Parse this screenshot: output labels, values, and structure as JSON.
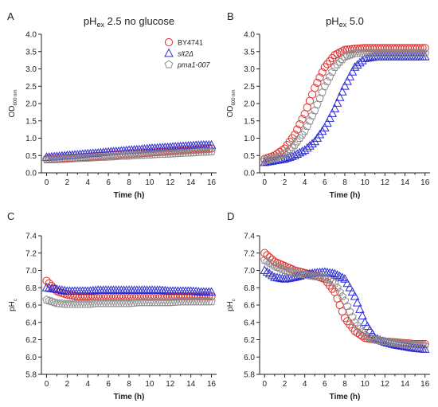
{
  "colors": {
    "axis": "#222222",
    "background": "#ffffff"
  },
  "chart_data": [
    {
      "panel_letter": "A",
      "type": "scatter",
      "title_main": "pH",
      "title_sub": "ex",
      "title_tail": " 2.5 no glucose",
      "xlabel": "Time (h)",
      "ylabel_main": "OD",
      "ylabel_sub": "600 nm",
      "xlim": [
        -0.5,
        16.5
      ],
      "ylim": [
        0.0,
        4.0
      ],
      "xticks": [
        0,
        2,
        4,
        6,
        8,
        10,
        12,
        14,
        16
      ],
      "yticks": [
        0.0,
        0.5,
        1.0,
        1.5,
        2.0,
        2.5,
        3.0,
        3.5,
        4.0
      ],
      "ytick_decimals": 1,
      "legend": {
        "position": "top-right",
        "entries": [
          {
            "name": "BY4741",
            "italic": false,
            "marker": "circle",
            "color": "#e0302e"
          },
          {
            "name": "slt2Δ",
            "italic": true,
            "marker": "triangle",
            "color": "#2b2bd4"
          },
          {
            "name": "pma1-007",
            "italic": true,
            "marker": "pentagon",
            "color": "#8c8c8c"
          }
        ]
      },
      "series": [
        {
          "marker": "circle",
          "color": "#e0302e",
          "x": [
            0,
            1,
            2,
            3,
            4,
            5,
            6,
            7,
            8,
            9,
            10,
            11,
            12,
            13,
            14,
            15,
            16
          ],
          "values": [
            0.4,
            0.41,
            0.43,
            0.44,
            0.46,
            0.48,
            0.5,
            0.52,
            0.54,
            0.56,
            0.58,
            0.6,
            0.62,
            0.64,
            0.66,
            0.68,
            0.7
          ]
        },
        {
          "marker": "triangle",
          "color": "#2b2bd4",
          "x": [
            0,
            1,
            2,
            3,
            4,
            5,
            6,
            7,
            8,
            9,
            10,
            11,
            12,
            13,
            14,
            15,
            16
          ],
          "values": [
            0.45,
            0.47,
            0.5,
            0.52,
            0.55,
            0.57,
            0.6,
            0.62,
            0.65,
            0.67,
            0.7,
            0.72,
            0.74,
            0.76,
            0.78,
            0.8,
            0.8
          ]
        },
        {
          "marker": "pentagon",
          "color": "#8c8c8c",
          "x": [
            0,
            1,
            2,
            3,
            4,
            5,
            6,
            7,
            8,
            9,
            10,
            11,
            12,
            13,
            14,
            15,
            16
          ],
          "values": [
            0.38,
            0.39,
            0.4,
            0.42,
            0.43,
            0.45,
            0.46,
            0.48,
            0.49,
            0.51,
            0.52,
            0.54,
            0.55,
            0.57,
            0.58,
            0.6,
            0.61
          ]
        }
      ]
    },
    {
      "panel_letter": "B",
      "type": "scatter",
      "title_main": "pH",
      "title_sub": "ex",
      "title_tail": " 5.0",
      "xlabel": "Time (h)",
      "ylabel_main": "OD",
      "ylabel_sub": "600 nm",
      "xlim": [
        -0.5,
        16.5
      ],
      "ylim": [
        0.0,
        4.0
      ],
      "xticks": [
        0,
        2,
        4,
        6,
        8,
        10,
        12,
        14,
        16
      ],
      "yticks": [
        0.0,
        0.5,
        1.0,
        1.5,
        2.0,
        2.5,
        3.0,
        3.5,
        4.0
      ],
      "ytick_decimals": 1,
      "series": [
        {
          "marker": "circle",
          "color": "#e0302e",
          "x": [
            0,
            1,
            2,
            3,
            4,
            5,
            6,
            7,
            8,
            9,
            10,
            11,
            12,
            13,
            14,
            15,
            16
          ],
          "values": [
            0.4,
            0.5,
            0.7,
            1.1,
            1.7,
            2.45,
            3.05,
            3.4,
            3.55,
            3.58,
            3.6,
            3.6,
            3.6,
            3.6,
            3.6,
            3.6,
            3.6
          ]
        },
        {
          "marker": "triangle",
          "color": "#2b2bd4",
          "x": [
            0,
            1,
            2,
            3,
            4,
            5,
            6,
            7,
            8,
            9,
            10,
            11,
            12,
            13,
            14,
            15,
            16
          ],
          "values": [
            0.3,
            0.35,
            0.4,
            0.5,
            0.65,
            0.9,
            1.3,
            1.85,
            2.5,
            3.05,
            3.3,
            3.35,
            3.35,
            3.35,
            3.35,
            3.35,
            3.35
          ]
        },
        {
          "marker": "pentagon",
          "color": "#8c8c8c",
          "x": [
            0,
            1,
            2,
            3,
            4,
            5,
            6,
            7,
            8,
            9,
            10,
            11,
            12,
            13,
            14,
            15,
            16
          ],
          "values": [
            0.35,
            0.42,
            0.55,
            0.8,
            1.2,
            1.8,
            2.5,
            3.05,
            3.35,
            3.45,
            3.45,
            3.45,
            3.45,
            3.45,
            3.45,
            3.45,
            3.45
          ]
        }
      ]
    },
    {
      "panel_letter": "C",
      "type": "scatter",
      "xlabel": "Time (h)",
      "ylabel_main": "pH",
      "ylabel_sub": "c",
      "xlim": [
        -0.5,
        16.5
      ],
      "ylim": [
        5.8,
        7.4
      ],
      "xticks": [
        0,
        2,
        4,
        6,
        8,
        10,
        12,
        14,
        16
      ],
      "yticks": [
        5.8,
        6.0,
        6.2,
        6.4,
        6.6,
        6.8,
        7.0,
        7.2,
        7.4
      ],
      "ytick_decimals": 1,
      "series": [
        {
          "marker": "circle",
          "color": "#e0302e",
          "x": [
            0,
            1,
            2,
            3,
            4,
            5,
            6,
            7,
            8,
            9,
            10,
            11,
            12,
            13,
            14,
            15,
            16
          ],
          "values": [
            6.88,
            6.76,
            6.72,
            6.7,
            6.7,
            6.7,
            6.7,
            6.7,
            6.7,
            6.7,
            6.7,
            6.7,
            6.7,
            6.7,
            6.7,
            6.7,
            6.7
          ]
        },
        {
          "marker": "triangle",
          "color": "#2b2bd4",
          "x": [
            0,
            1,
            2,
            3,
            4,
            5,
            6,
            7,
            8,
            9,
            10,
            11,
            12,
            13,
            14,
            15,
            16
          ],
          "values": [
            6.8,
            6.78,
            6.76,
            6.76,
            6.76,
            6.77,
            6.77,
            6.77,
            6.77,
            6.77,
            6.77,
            6.77,
            6.76,
            6.76,
            6.76,
            6.75,
            6.75
          ]
        },
        {
          "marker": "pentagon",
          "color": "#8c8c8c",
          "x": [
            0,
            1,
            2,
            3,
            4,
            5,
            6,
            7,
            8,
            9,
            10,
            11,
            12,
            13,
            14,
            15,
            16
          ],
          "values": [
            6.66,
            6.62,
            6.61,
            6.61,
            6.61,
            6.62,
            6.62,
            6.62,
            6.62,
            6.63,
            6.63,
            6.63,
            6.63,
            6.64,
            6.64,
            6.64,
            6.64
          ]
        }
      ]
    },
    {
      "panel_letter": "D",
      "type": "scatter",
      "xlabel": "Time (h)",
      "ylabel_main": "pH",
      "ylabel_sub": "c",
      "xlim": [
        -0.5,
        16.5
      ],
      "ylim": [
        5.8,
        7.4
      ],
      "xticks": [
        0,
        2,
        4,
        6,
        8,
        10,
        12,
        14,
        16
      ],
      "yticks": [
        5.8,
        6.0,
        6.2,
        6.4,
        6.6,
        6.8,
        7.0,
        7.2,
        7.4
      ],
      "ytick_decimals": 1,
      "series": [
        {
          "marker": "circle",
          "color": "#e0302e",
          "x": [
            0,
            1,
            2,
            3,
            4,
            5,
            6,
            7,
            8,
            9,
            10,
            11,
            12,
            13,
            14,
            15,
            16
          ],
          "values": [
            7.2,
            7.1,
            7.05,
            7.0,
            6.97,
            6.94,
            6.9,
            6.75,
            6.45,
            6.3,
            6.22,
            6.2,
            6.18,
            6.17,
            6.16,
            6.15,
            6.15
          ]
        },
        {
          "marker": "triangle",
          "color": "#2b2bd4",
          "x": [
            0,
            1,
            2,
            3,
            4,
            5,
            6,
            7,
            8,
            9,
            10,
            11,
            12,
            13,
            14,
            15,
            16
          ],
          "values": [
            7.0,
            6.92,
            6.9,
            6.92,
            6.95,
            6.97,
            6.98,
            6.96,
            6.9,
            6.7,
            6.4,
            6.22,
            6.17,
            6.14,
            6.12,
            6.1,
            6.09
          ]
        },
        {
          "marker": "pentagon",
          "color": "#8c8c8c",
          "x": [
            0,
            1,
            2,
            3,
            4,
            5,
            6,
            7,
            8,
            9,
            10,
            11,
            12,
            13,
            14,
            15,
            16
          ],
          "values": [
            7.12,
            7.05,
            7.0,
            6.97,
            6.95,
            6.93,
            6.92,
            6.85,
            6.65,
            6.4,
            6.25,
            6.2,
            6.18,
            6.16,
            6.15,
            6.14,
            6.13
          ]
        }
      ]
    }
  ]
}
